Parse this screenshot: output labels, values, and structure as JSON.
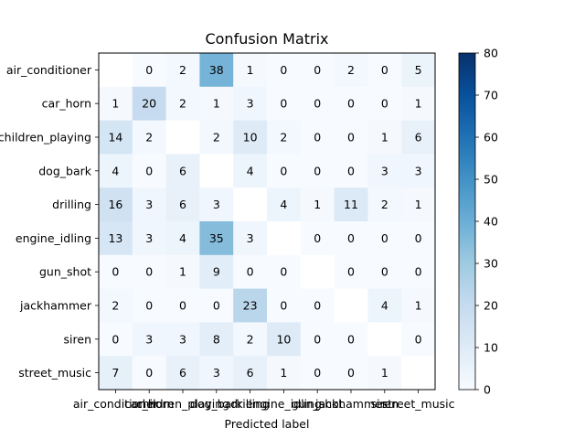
{
  "chart_data": {
    "type": "heatmap",
    "title": "Confusion Matrix",
    "xlabel": "Predicted label",
    "ylabel": "",
    "row_labels": [
      "air_conditioner",
      "car_horn",
      "children_playing",
      "dog_bark",
      "drilling",
      "engine_idling",
      "gun_shot",
      "jackhammer",
      "siren",
      "street_music"
    ],
    "col_labels": [
      "air_conditioner",
      "car_horn",
      "children_playing",
      "dog_bark",
      "drilling",
      "engine_idling",
      "gun_shot",
      "jackhammer",
      "siren",
      "street_music"
    ],
    "values": [
      [
        null,
        0,
        2,
        38,
        1,
        0,
        0,
        2,
        0,
        5
      ],
      [
        1,
        20,
        2,
        1,
        3,
        0,
        0,
        0,
        0,
        1
      ],
      [
        14,
        2,
        null,
        2,
        10,
        2,
        0,
        0,
        1,
        6
      ],
      [
        4,
        0,
        6,
        null,
        4,
        0,
        0,
        0,
        3,
        3
      ],
      [
        16,
        3,
        6,
        3,
        null,
        4,
        1,
        11,
        2,
        1
      ],
      [
        13,
        3,
        4,
        35,
        3,
        null,
        0,
        0,
        0,
        0
      ],
      [
        0,
        0,
        1,
        9,
        0,
        0,
        null,
        0,
        0,
        0
      ],
      [
        2,
        0,
        0,
        0,
        23,
        0,
        0,
        null,
        4,
        1
      ],
      [
        0,
        3,
        3,
        8,
        2,
        10,
        0,
        0,
        null,
        0
      ],
      [
        7,
        0,
        6,
        3,
        6,
        1,
        0,
        0,
        1,
        null
      ]
    ],
    "colorbar": {
      "min": 0,
      "max": 80,
      "ticks": [
        0,
        10,
        20,
        30,
        40,
        50,
        60,
        70,
        80
      ],
      "colormap": "Blues"
    },
    "grid": false,
    "legend": "right colorbar"
  },
  "colors": {
    "cmap_stops": [
      "#f7fbff",
      "#deebf7",
      "#c6dbef",
      "#9ecae1",
      "#6baed6",
      "#4292c6",
      "#2171b5",
      "#08519c",
      "#08306b"
    ]
  }
}
